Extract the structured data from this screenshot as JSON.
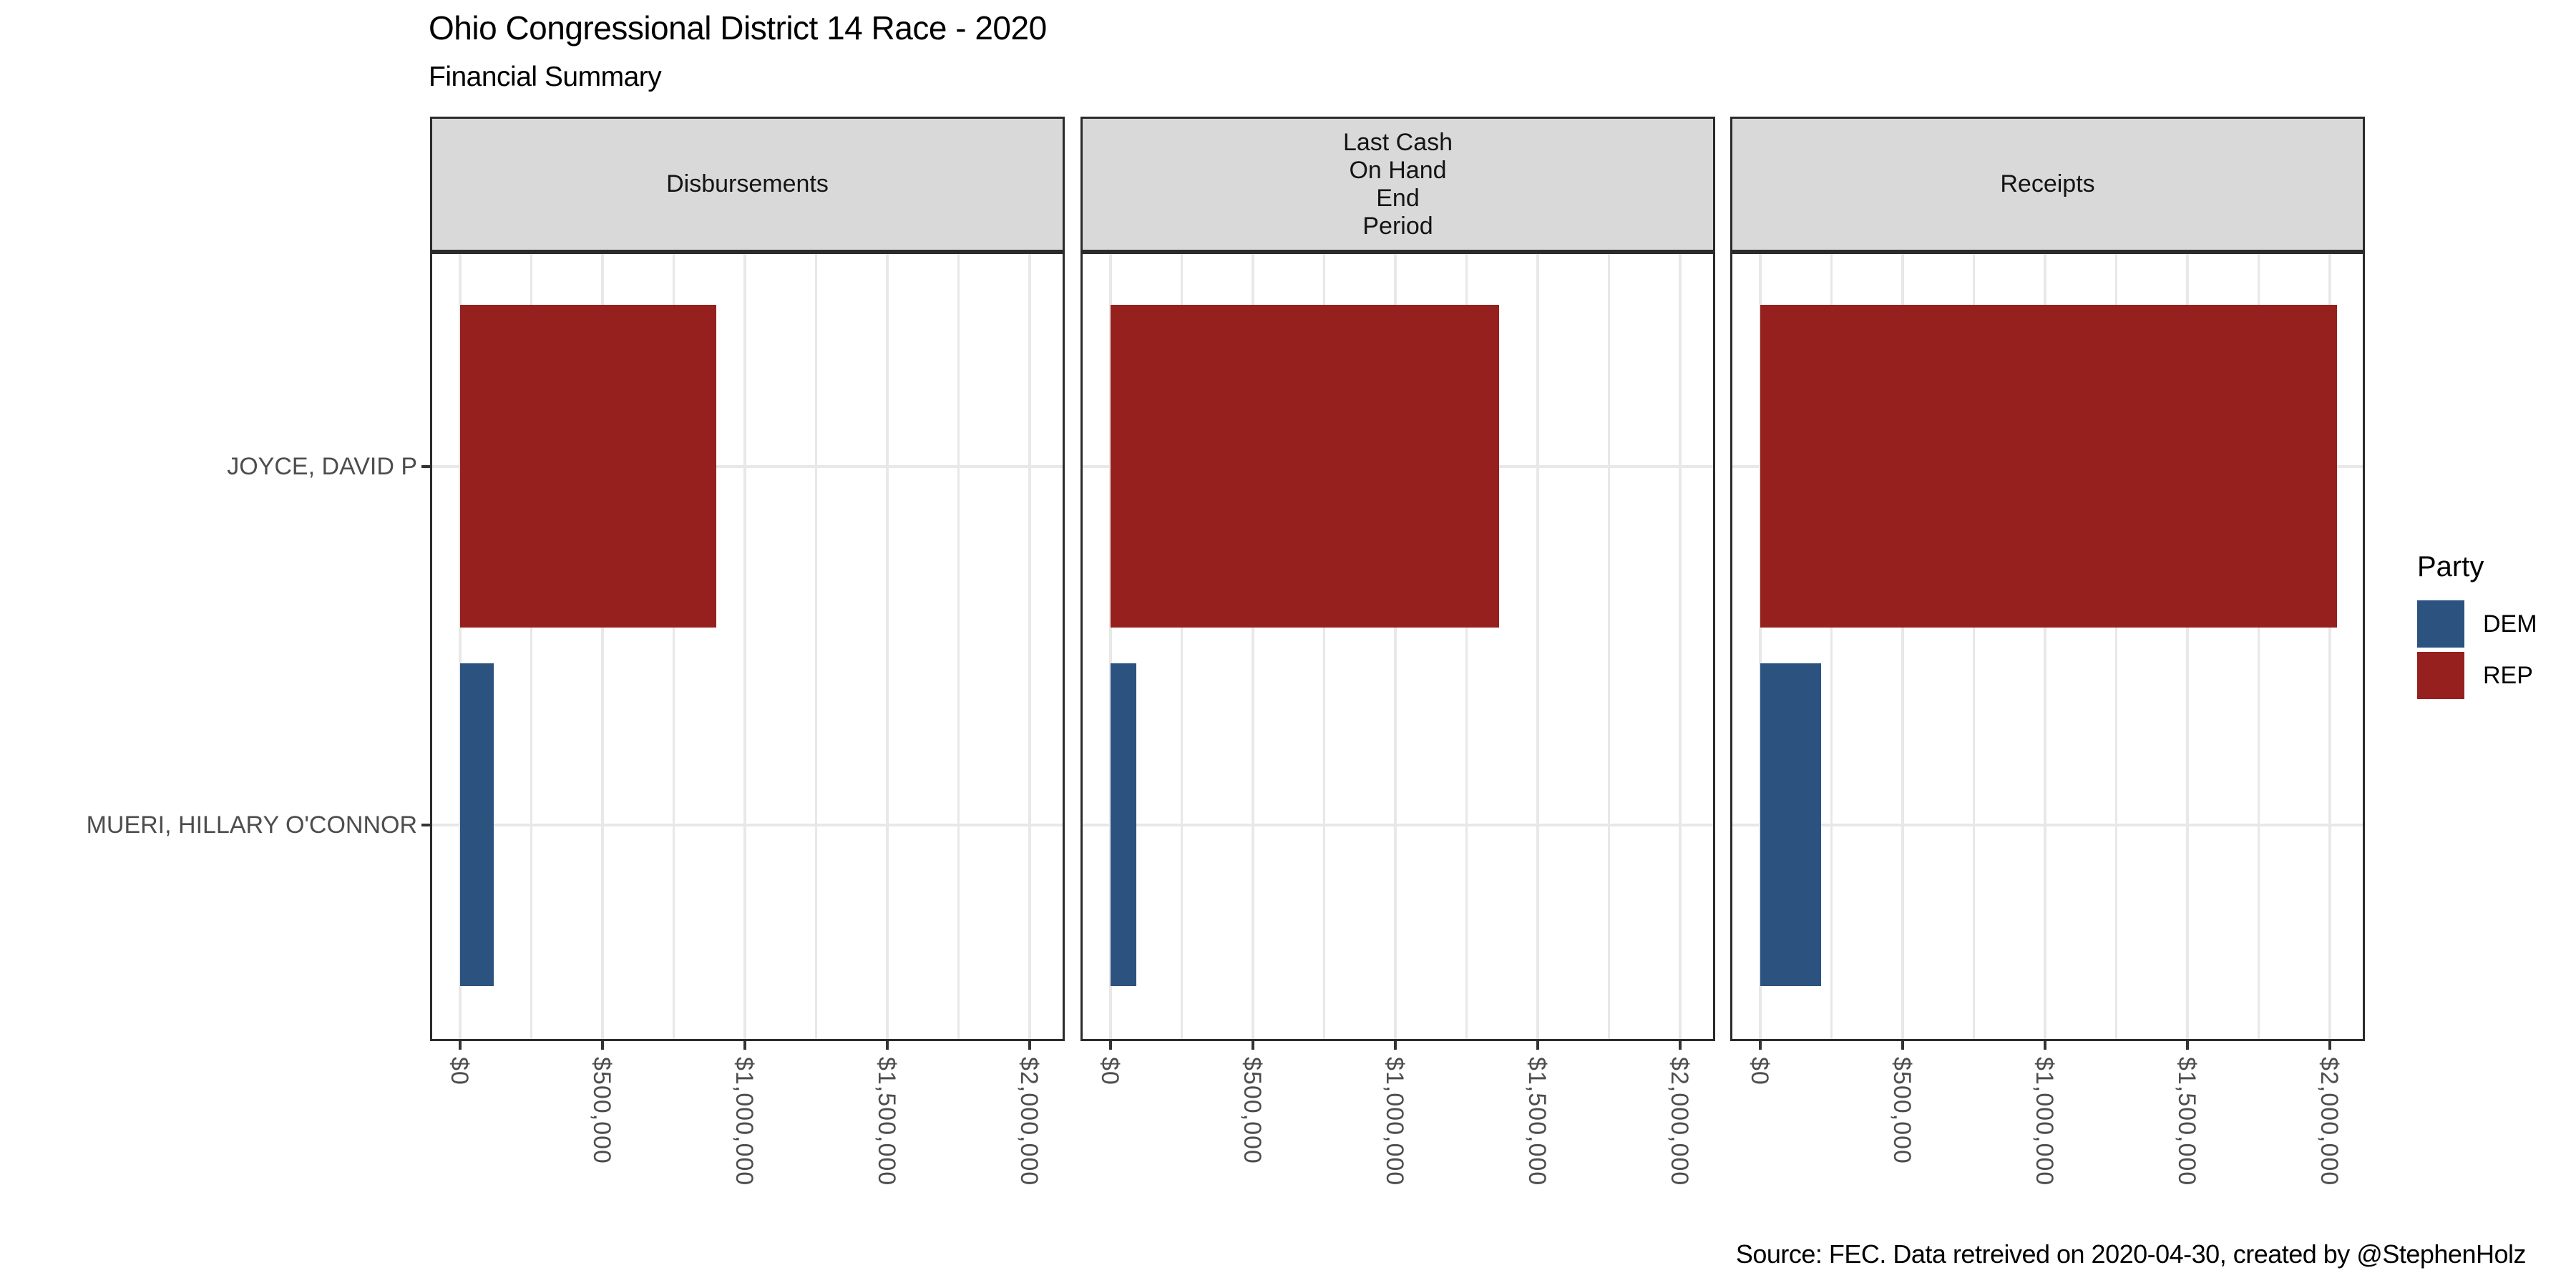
{
  "title": "Ohio Congressional District 14 Race - 2020",
  "subtitle": "Financial Summary",
  "caption": "Source: FEC. Data retreived on 2020-04-30, created by @StephenHolz",
  "legend": {
    "title": "Party",
    "items": [
      {
        "label": "DEM",
        "color": "#2C5380"
      },
      {
        "label": "REP",
        "color": "#96201E"
      }
    ]
  },
  "colors": {
    "strip_fill": "#D9D9D9",
    "panel_border": "#2B2B2B",
    "gridline": "#E8E8E8",
    "tick_mark": "#333333",
    "axis_text": "#4D4D4D",
    "text": "#000000",
    "background": "#FFFFFF"
  },
  "chart_data": {
    "type": "bar",
    "orientation": "horizontal",
    "title": "Ohio Congressional District 14 Race - 2020",
    "subtitle": "Financial Summary",
    "caption": "Source: FEC. Data retreived on 2020-04-30, created by @StephenHolz",
    "categories": [
      "JOYCE, DAVID P",
      "MUERI, HILLARY O'CONNOR"
    ],
    "category_parties": [
      "REP",
      "DEM"
    ],
    "facets": [
      {
        "label": "Disbursements",
        "values": [
          900000,
          117000
        ]
      },
      {
        "label": "Last Cash\nOn Hand\nEnd\nPeriod",
        "values": [
          1365000,
          90000
        ]
      },
      {
        "label": "Receipts",
        "values": [
          2025000,
          213000
        ]
      }
    ],
    "x_axis": {
      "min": 0,
      "max": 2000000,
      "major_tick_values": [
        0,
        500000,
        1000000,
        1500000,
        2000000
      ],
      "major_tick_labels": [
        "$0",
        "$500,000",
        "$1,000,000",
        "$1,500,000",
        "$2,000,000"
      ],
      "minor_step": 250000,
      "grid": true
    },
    "legend_position": "right",
    "legend_title": "Party"
  }
}
